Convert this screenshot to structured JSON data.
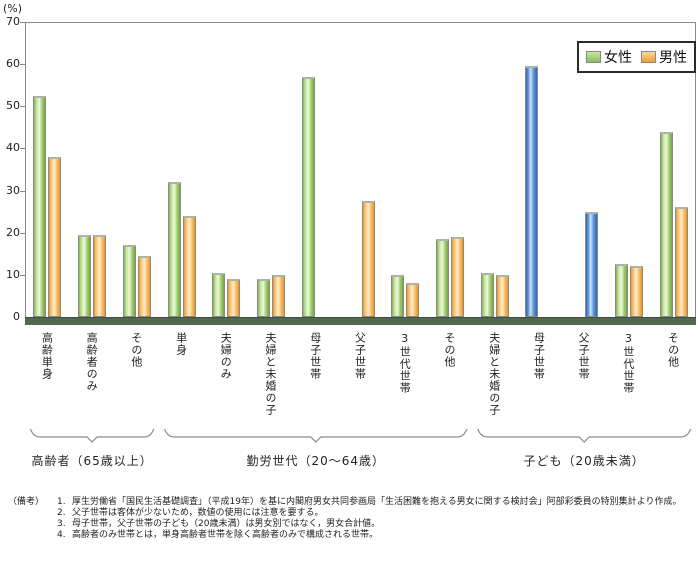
{
  "chart_data": {
    "type": "bar",
    "title": "",
    "unit": "(%)",
    "ylim": [
      0,
      70
    ],
    "yticks": [
      0,
      10,
      20,
      30,
      40,
      50,
      60,
      70
    ],
    "grid": false,
    "legend_position": "top-right",
    "series_names": {
      "female": "女性",
      "male": "男性",
      "combined": "男女合計"
    },
    "colors": {
      "female": "#8cbd5c",
      "male": "#f29b2e",
      "combined": "#3d7cc9",
      "baseline": "#52694e"
    },
    "groups": [
      {
        "label": "高齢者（65歳以上）",
        "categories": [
          {
            "label": "高齢単身",
            "female": 52.5,
            "male": 38
          },
          {
            "label": "高齢者のみ",
            "female": 19.5,
            "male": 19.5
          },
          {
            "label": "その他",
            "female": 17,
            "male": 14.5
          }
        ]
      },
      {
        "label": "勤労世代（20～64歳）",
        "categories": [
          {
            "label": "単身",
            "female": 32,
            "male": 24
          },
          {
            "label": "夫婦のみ",
            "female": 10.5,
            "male": 9
          },
          {
            "label": "夫婦と未婚の子",
            "female": 9,
            "male": 10
          },
          {
            "label": "母子世帯",
            "female": 57
          },
          {
            "label": "父子世帯",
            "male": 27.5
          },
          {
            "label": "3世代世帯",
            "female": 10,
            "male": 8
          },
          {
            "label": "その他",
            "female": 18.5,
            "male": 19
          }
        ]
      },
      {
        "label": "子ども（20歳未満）",
        "categories": [
          {
            "label": "夫婦と未婚の子",
            "female": 10.5,
            "male": 10
          },
          {
            "label": "母子世帯",
            "combined": 59.5,
            "bar_slot": "female"
          },
          {
            "label": "父子世帯",
            "combined": 25,
            "bar_slot": "male"
          },
          {
            "label": "3世代世帯",
            "female": 12.5,
            "male": 12
          },
          {
            "label": "その他",
            "female": 44,
            "male": 26
          }
        ]
      }
    ]
  },
  "legend": {
    "female_label": "女性",
    "male_label": "男性"
  },
  "notes": {
    "prefix": "（備考）",
    "items": [
      "厚生労働省「国民生活基礎調査」（平成19年）を基に内閣府男女共同参画局「生活困難を抱える男女に関する検討会」阿部彩委員の特別集計より作成。",
      "父子世帯は客体が少ないため，数値の使用には注意を要する。",
      "母子世帯，父子世帯の子ども（20歳未満）は男女別ではなく，男女合計値。",
      "高齢者のみ世帯とは，単身高齢者世帯を除く高齢者のみで構成される世帯。"
    ]
  }
}
